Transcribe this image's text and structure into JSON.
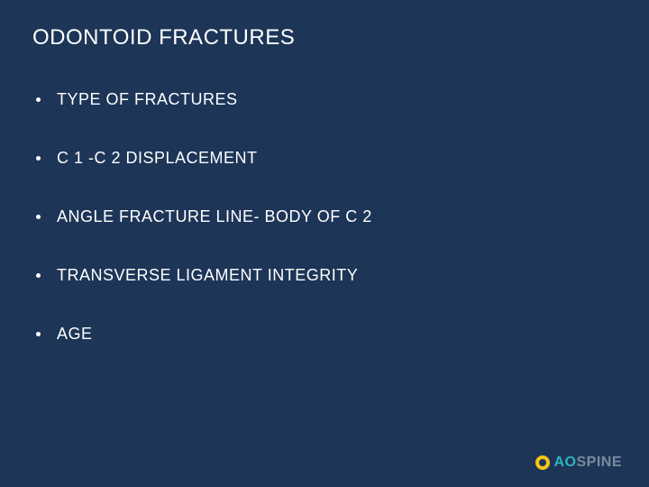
{
  "slide": {
    "background_color": "#1d3557",
    "text_color": "#ffffff",
    "title": "ODONTOID FRACTURES",
    "title_fontsize": 24,
    "bullets": [
      "TYPE OF FRACTURES",
      "C 1 -C 2 DISPLACEMENT",
      "ANGLE FRACTURE LINE- BODY OF C 2",
      "TRANSVERSE LIGAMENT INTEGRITY",
      "AGE"
    ],
    "bullet_fontsize": 18,
    "logo": {
      "ao": "AO",
      "spine": "SPINE",
      "ao_color": "#2fb4c2",
      "spine_color": "#7a8aa0",
      "badge_color": "#f5c518"
    }
  }
}
